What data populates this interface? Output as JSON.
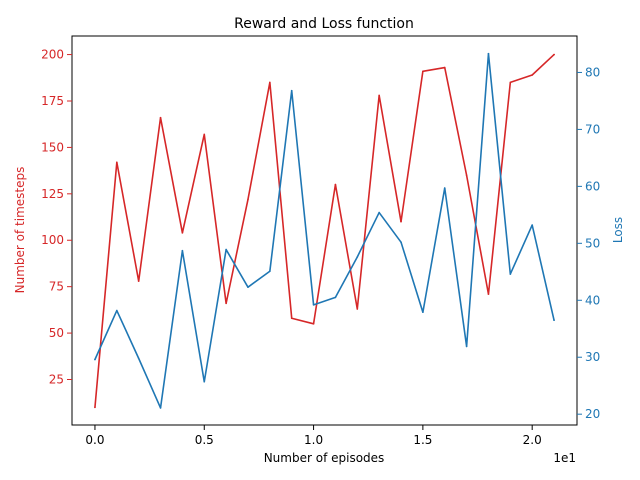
{
  "chart_data": {
    "type": "line",
    "title": "Reward and Loss function",
    "xlabel": "Number of episodes",
    "x_offset_label": "1e1",
    "x_ticks": [
      0,
      5,
      10,
      15,
      20
    ],
    "x_tick_labels": [
      "0.0",
      "0.5",
      "1.0",
      "1.5",
      "2.0"
    ],
    "xlim": [
      -1.05,
      22.05
    ],
    "grid": false,
    "x": [
      0,
      1,
      2,
      3,
      4,
      5,
      6,
      7,
      8,
      9,
      10,
      11,
      12,
      13,
      14,
      15,
      16,
      17,
      18,
      19,
      20,
      21
    ],
    "left_axis": {
      "label": "Number of timesteps",
      "color": "#d62728",
      "ylim": [
        0.5,
        210
      ],
      "ticks": [
        25,
        50,
        75,
        100,
        125,
        150,
        175,
        200
      ],
      "tick_labels": [
        "25",
        "50",
        "75",
        "100",
        "125",
        "150",
        "175",
        "200"
      ]
    },
    "right_axis": {
      "label": "Loss",
      "color": "#1f77b4",
      "ylim": [
        18.1,
        86.4
      ],
      "ticks": [
        20,
        30,
        40,
        50,
        60,
        70,
        80
      ],
      "tick_labels": [
        "20",
        "30",
        "40",
        "50",
        "60",
        "70",
        "80"
      ]
    },
    "series": [
      {
        "axis": "left",
        "color": "#d62728",
        "values": [
          10,
          142,
          78,
          166,
          104,
          157,
          66,
          122,
          185,
          58,
          55,
          130,
          63,
          178,
          110,
          191,
          193,
          135,
          71,
          185,
          189,
          200
        ]
      },
      {
        "axis": "right",
        "color": "#1f77b4",
        "values": [
          29.6,
          38.2,
          29.8,
          21.1,
          48.7,
          25.7,
          48.9,
          42.3,
          45.1,
          76.8,
          39.2,
          40.5,
          47.6,
          55.4,
          50.2,
          37.9,
          59.7,
          31.9,
          83.3,
          44.6,
          53.2,
          36.5
        ]
      }
    ]
  }
}
